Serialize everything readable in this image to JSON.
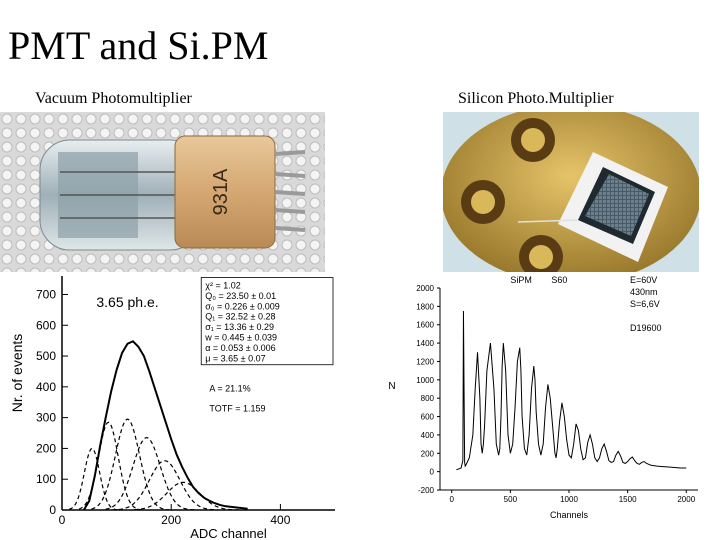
{
  "slide": {
    "title": "PMT and Si.PM",
    "left_caption": "Vacuum Photomultiplier",
    "right_caption": "Silicon Photo.Multiplier",
    "tube_marking": "931A"
  },
  "chart_data": [
    {
      "type": "line",
      "title": "3.65 ph.e.",
      "xlabel": "ADC channel",
      "ylabel": "Nr. of events",
      "xlim": [
        0,
        500
      ],
      "ylim": [
        0,
        760
      ],
      "x_ticks": [
        0,
        200,
        400
      ],
      "y_ticks": [
        0,
        100,
        200,
        300,
        400,
        500,
        600,
        700
      ],
      "fit_params": [
        "χ² = 1.02",
        "Q₀ = 23.50 ± 0.01",
        "σ₀ = 0.226 ± 0.009",
        "Q₁ = 32.52 ± 0.28",
        "σ₁ = 13.36 ± 0.29",
        "w = 0.445 ± 0.039",
        "α = 0.053 ± 0.006",
        "μ = 3.65 ± 0.07"
      ],
      "notes": [
        "A = 21.1%",
        "TOTF = 1.159"
      ],
      "series": [
        {
          "style": "solid",
          "x": [
            40,
            50,
            60,
            70,
            80,
            90,
            100,
            110,
            120,
            130,
            140,
            150,
            160,
            170,
            180,
            190,
            200,
            210,
            220,
            230,
            240,
            250,
            260,
            270,
            280,
            290,
            300,
            320,
            340
          ],
          "y": [
            0,
            30,
            110,
            210,
            300,
            385,
            455,
            510,
            540,
            548,
            530,
            500,
            450,
            395,
            340,
            285,
            230,
            180,
            140,
            105,
            75,
            55,
            40,
            30,
            22,
            16,
            12,
            8,
            4
          ]
        },
        {
          "style": "dashed",
          "peak_x": 55,
          "peak_y": 200,
          "sigma": 14
        },
        {
          "style": "dashed",
          "peak_x": 85,
          "peak_y": 285,
          "sigma": 18
        },
        {
          "style": "dashed",
          "peak_x": 120,
          "peak_y": 295,
          "sigma": 22
        },
        {
          "style": "dashed",
          "peak_x": 155,
          "peak_y": 235,
          "sigma": 25
        },
        {
          "style": "dashed",
          "peak_x": 188,
          "peak_y": 160,
          "sigma": 28
        },
        {
          "style": "dashed",
          "peak_x": 222,
          "peak_y": 90,
          "sigma": 30
        }
      ]
    },
    {
      "type": "line",
      "title": "SiPM",
      "subtitle": "S60",
      "xlabel": "Channels",
      "ylabel": "N",
      "xlim": [
        -100,
        2100
      ],
      "ylim": [
        -200,
        2000
      ],
      "x_ticks": [
        0,
        500,
        1000,
        1500,
        2000
      ],
      "y_ticks": [
        -200,
        0,
        200,
        400,
        600,
        800,
        1000,
        1200,
        1400,
        1600,
        1800,
        2000
      ],
      "annotations": [
        "E=60V",
        "430nm",
        "S=6,6V",
        "D19600"
      ],
      "series": [
        {
          "x": [
            40,
            80,
            95,
            100,
            105,
            110,
            115,
            120,
            150,
            180,
            200,
            220,
            240,
            250,
            260,
            270,
            280,
            300,
            330,
            360,
            380,
            400,
            410,
            420,
            430,
            440,
            460,
            480,
            500,
            520,
            540,
            560,
            580,
            590,
            600,
            620,
            640,
            660,
            680,
            700,
            710,
            720,
            740,
            760,
            780,
            800,
            820,
            840,
            860,
            880,
            890,
            900,
            920,
            940,
            960,
            980,
            1000,
            1020,
            1040,
            1060,
            1080,
            1100,
            1120,
            1140,
            1160,
            1180,
            1200,
            1220,
            1240,
            1260,
            1280,
            1300,
            1320,
            1340,
            1360,
            1380,
            1400,
            1420,
            1440,
            1460,
            1480,
            1500,
            1520,
            1540,
            1560,
            1580,
            1600,
            1620,
            1640,
            1660,
            1680,
            1700,
            1750,
            1800,
            1850,
            1900,
            1950,
            2000
          ],
          "y": [
            20,
            40,
            120,
            1750,
            900,
            100,
            60,
            70,
            150,
            400,
            900,
            1300,
            800,
            300,
            200,
            300,
            500,
            1100,
            1400,
            900,
            300,
            180,
            250,
            600,
            1150,
            1400,
            1100,
            400,
            200,
            300,
            700,
            1200,
            1350,
            1100,
            600,
            250,
            180,
            400,
            900,
            1150,
            1000,
            650,
            300,
            180,
            300,
            700,
            950,
            800,
            500,
            200,
            150,
            250,
            550,
            750,
            600,
            350,
            180,
            150,
            300,
            520,
            450,
            250,
            130,
            150,
            320,
            400,
            300,
            150,
            110,
            150,
            250,
            300,
            220,
            120,
            100,
            110,
            180,
            220,
            170,
            100,
            90,
            110,
            140,
            160,
            120,
            90,
            80,
            100,
            110,
            90,
            80,
            70,
            60,
            55,
            50,
            45,
            40,
            40
          ]
        }
      ]
    }
  ]
}
